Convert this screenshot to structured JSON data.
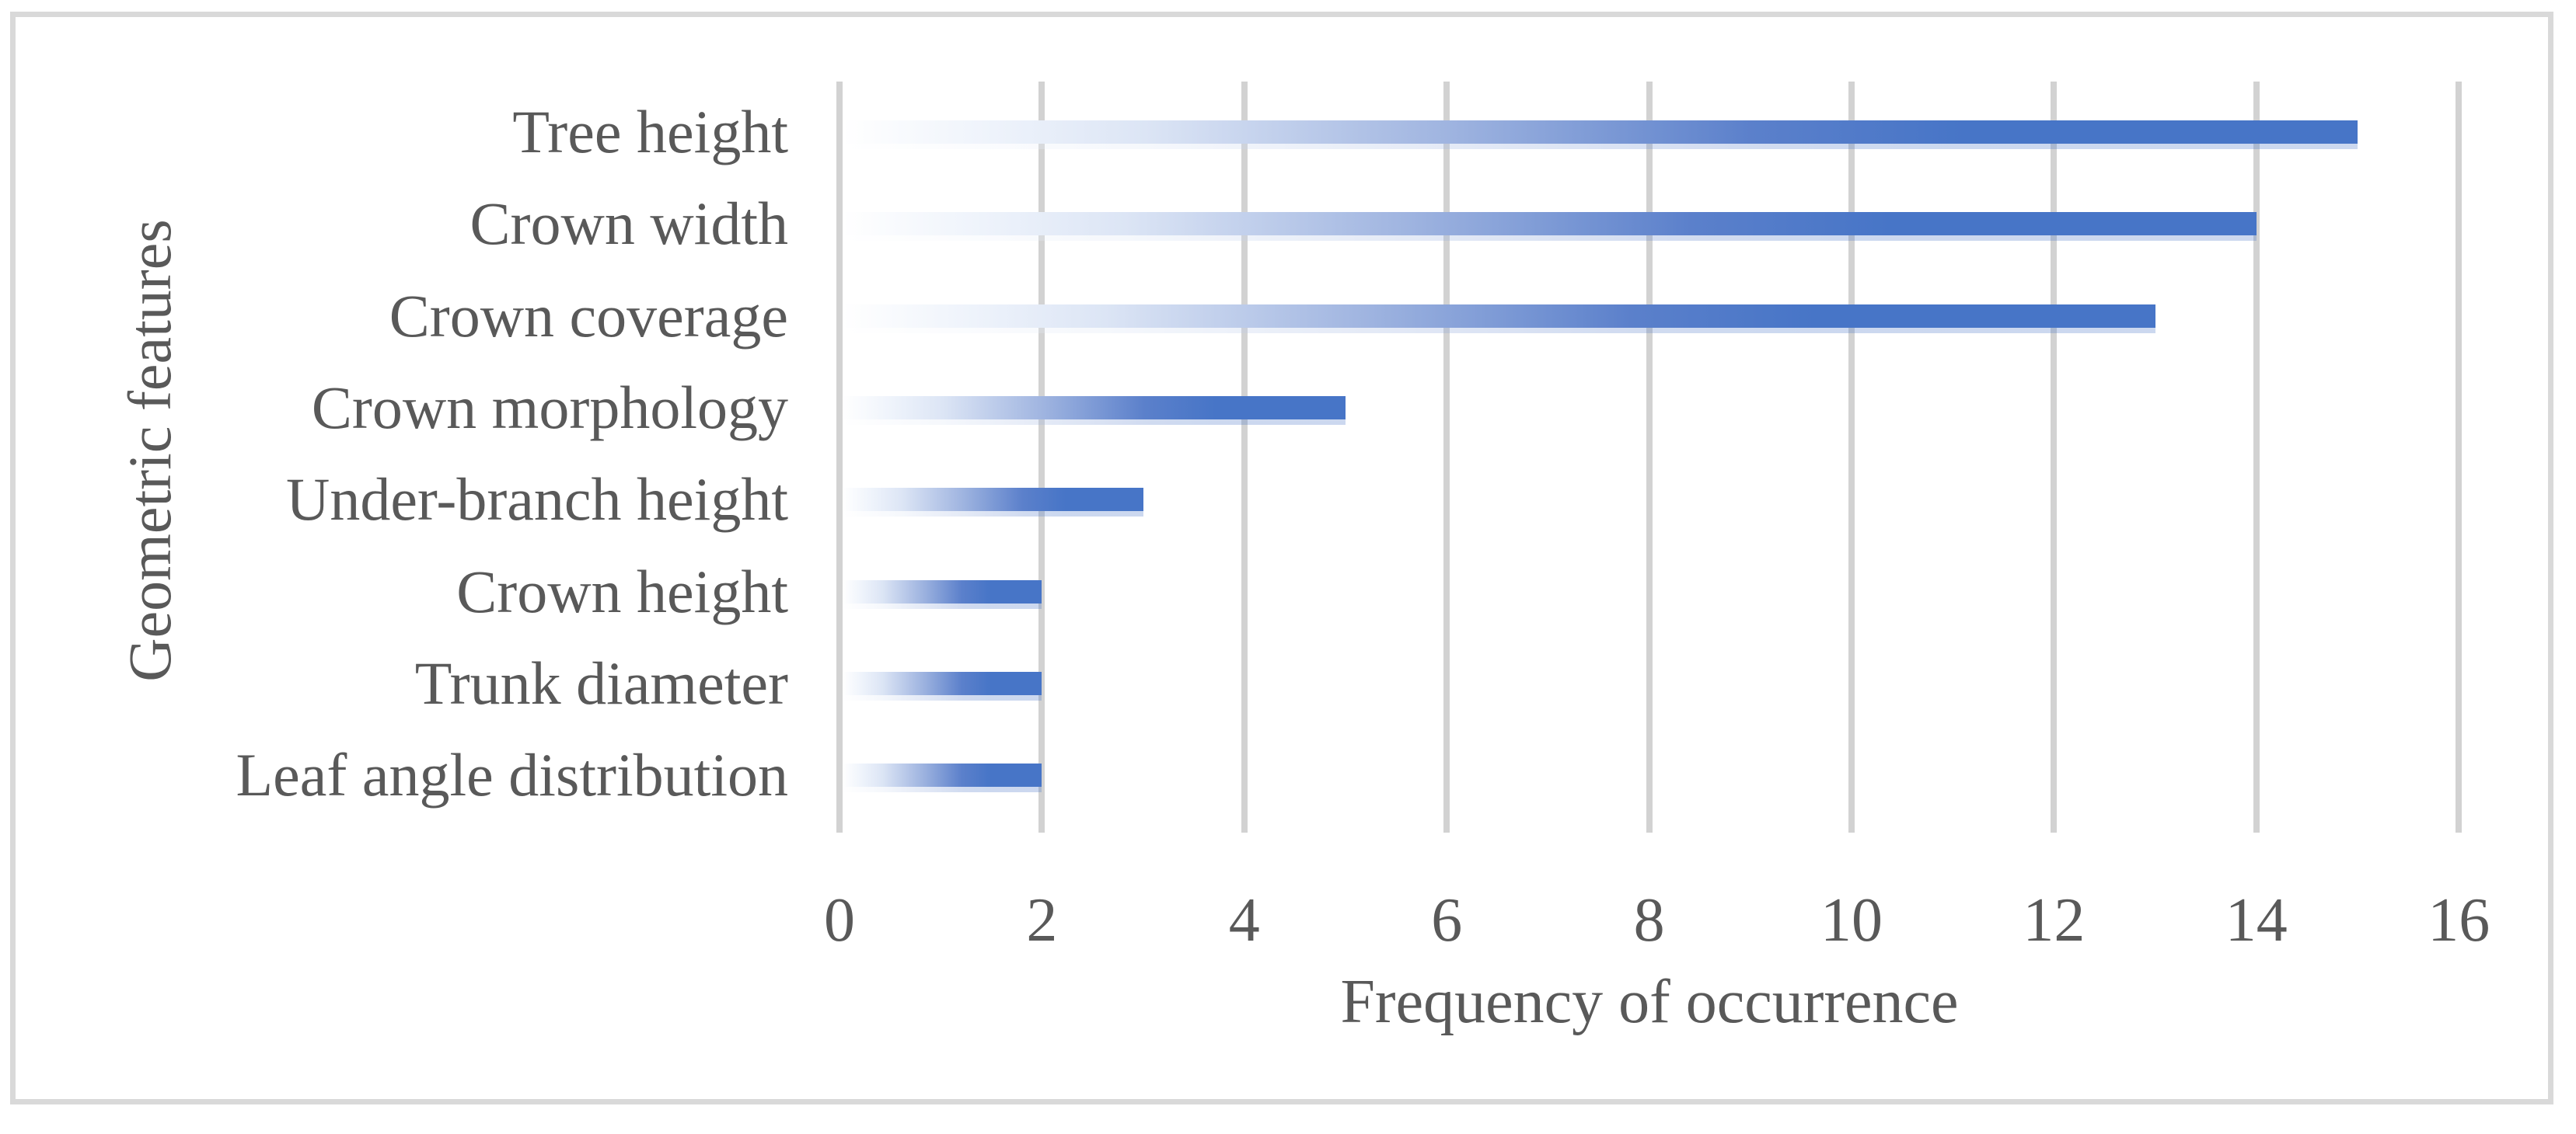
{
  "chart_data": {
    "type": "bar",
    "orientation": "horizontal",
    "categories": [
      "Tree height",
      "Crown width",
      "Crown coverage",
      "Crown morphology",
      "Under-branch height",
      "Crown height",
      "Trunk diameter",
      "Leaf angle distribution"
    ],
    "values": [
      15,
      14,
      13,
      5,
      3,
      2,
      2,
      2
    ],
    "xlabel": "Frequency of occurrence",
    "ylabel": "Geometric features",
    "xlim": [
      0,
      16
    ],
    "x_ticks": [
      "0",
      "2",
      "4",
      "6",
      "8",
      "10",
      "12",
      "14",
      "16"
    ],
    "grid": "vertical-gridlines-with-outside-ticks",
    "legend": "none",
    "colors": {
      "bar_solid": "#4775C7",
      "bar_gradient_start": "#FFFFFF",
      "gridline": "#D2D2D2",
      "text": "#595959",
      "frame_border": "#D9D9D9",
      "background": "#FFFFFF"
    }
  }
}
